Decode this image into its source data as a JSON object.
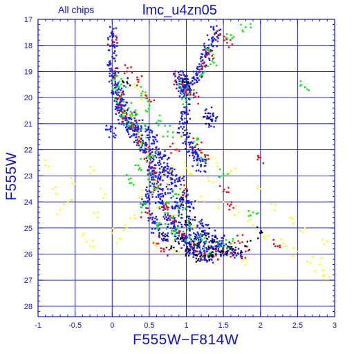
{
  "chart_data": {
    "type": "scatter",
    "title": "lmc_u4zn05",
    "subtitle": "All chips",
    "xlabel": "F555W−F814W",
    "ylabel": "F555W",
    "xlim": [
      -1,
      3
    ],
    "ylim": [
      28.4,
      17
    ],
    "y_inverted": true,
    "grid": true,
    "xticks": [
      "-1",
      "-0.5",
      "0",
      "0.5",
      "1",
      "1.5",
      "2",
      "2.5",
      "3"
    ],
    "xtick_values": [
      -1,
      -0.5,
      0,
      0.5,
      1,
      1.5,
      2,
      2.5,
      3
    ],
    "yticks": [
      "17",
      "18",
      "19",
      "20",
      "21",
      "22",
      "23",
      "24",
      "25",
      "26",
      "27",
      "28"
    ],
    "ytick_values": [
      17,
      18,
      19,
      20,
      21,
      22,
      23,
      24,
      25,
      26,
      27,
      28
    ],
    "colors": {
      "axis": "#1010d0",
      "grid": "#1010d0",
      "series": [
        "#1a1aff",
        "#00ee00",
        "#ff0000",
        "#ffff00",
        "#000000"
      ]
    },
    "series": [
      {
        "color": "#1a1aff",
        "points": [
          [
            0.02,
            19.2
          ],
          [
            0.05,
            19.6
          ],
          [
            0.08,
            19.9
          ],
          [
            0.1,
            20.2
          ],
          [
            0.12,
            20.5
          ],
          [
            0.15,
            20.8
          ],
          [
            0.2,
            21.0
          ],
          [
            0.25,
            21.2
          ],
          [
            0.3,
            21.4
          ],
          [
            0.35,
            21.6
          ],
          [
            0.4,
            21.8
          ],
          [
            0.45,
            22.0
          ],
          [
            0.5,
            22.2
          ],
          [
            0.52,
            22.5
          ],
          [
            0.55,
            22.8
          ],
          [
            0.58,
            23.0
          ],
          [
            0.6,
            23.3
          ],
          [
            0.62,
            23.6
          ],
          [
            0.65,
            23.9
          ],
          [
            0.7,
            24.2
          ],
          [
            0.75,
            24.5
          ],
          [
            0.8,
            24.8
          ],
          [
            0.85,
            25.0
          ],
          [
            0.9,
            25.2
          ],
          [
            0.95,
            25.4
          ],
          [
            1.0,
            25.6
          ],
          [
            1.05,
            25.7
          ],
          [
            1.1,
            25.8
          ],
          [
            1.15,
            25.9
          ],
          [
            1.2,
            26.0
          ],
          [
            1.25,
            26.05
          ],
          [
            1.3,
            26.1
          ],
          [
            0.7,
            22.5
          ],
          [
            0.75,
            23.0
          ],
          [
            0.8,
            23.5
          ],
          [
            0.85,
            24.0
          ],
          [
            0.9,
            24.4
          ],
          [
            1.0,
            24.8
          ],
          [
            1.1,
            25.2
          ],
          [
            1.2,
            25.5
          ],
          [
            1.3,
            25.7
          ],
          [
            1.4,
            25.9
          ],
          [
            0.6,
            22.0
          ],
          [
            0.65,
            22.3
          ],
          [
            0.7,
            22.8
          ],
          [
            0.8,
            22.9
          ],
          [
            0.9,
            23.2
          ],
          [
            1.0,
            23.8
          ],
          [
            1.05,
            24.2
          ],
          [
            1.15,
            24.9
          ],
          [
            0.55,
            21.5
          ],
          [
            0.45,
            21.3
          ],
          [
            0.35,
            21.1
          ],
          [
            0.25,
            20.8
          ],
          [
            0.15,
            20.3
          ],
          [
            0.1,
            19.8
          ],
          [
            0.9,
            19.2
          ],
          [
            0.95,
            19.4
          ],
          [
            1.0,
            19.6
          ],
          [
            1.05,
            19.8
          ],
          [
            0.92,
            19.6
          ],
          [
            1.02,
            19.3
          ],
          [
            1.08,
            19.5
          ],
          [
            0.98,
            19.9
          ],
          [
            1.0,
            21.6
          ],
          [
            1.05,
            21.9
          ],
          [
            1.1,
            22.1
          ],
          [
            1.15,
            22.4
          ],
          [
            1.2,
            22.6
          ],
          [
            0.95,
            21.2
          ],
          [
            0.98,
            20.8
          ],
          [
            1.0,
            20.4
          ],
          [
            1.2,
            18.8
          ],
          [
            1.25,
            18.4
          ],
          [
            1.3,
            18.1
          ],
          [
            1.35,
            17.8
          ],
          [
            1.4,
            17.5
          ],
          [
            1.15,
            19.1
          ],
          [
            1.3,
            20.6
          ],
          [
            1.35,
            20.9
          ],
          [
            0.0,
            17.5
          ],
          [
            0.01,
            18.0
          ],
          [
            0.02,
            18.5
          ],
          [
            0.0,
            19.0
          ],
          [
            -0.02,
            21.3
          ],
          [
            0.55,
            24.6
          ],
          [
            0.6,
            25.0
          ],
          [
            0.7,
            25.3
          ],
          [
            1.5,
            25.8
          ],
          [
            1.6,
            25.95
          ],
          [
            1.7,
            26.0
          ],
          [
            0.5,
            23.6
          ],
          [
            0.45,
            24.0
          ],
          [
            1.45,
            25.5
          ],
          [
            1.35,
            25.3
          ],
          [
            1.25,
            25.1
          ]
        ]
      },
      {
        "color": "#00ee00",
        "points": [
          [
            0.03,
            19.3
          ],
          [
            0.06,
            19.7
          ],
          [
            0.1,
            20.0
          ],
          [
            0.14,
            20.6
          ],
          [
            0.2,
            20.9
          ],
          [
            0.28,
            21.1
          ],
          [
            0.4,
            21.7
          ],
          [
            0.5,
            22.3
          ],
          [
            0.55,
            23.1
          ],
          [
            0.6,
            23.5
          ],
          [
            0.7,
            24.0
          ],
          [
            0.78,
            24.6
          ],
          [
            0.9,
            25.1
          ],
          [
            1.0,
            25.5
          ],
          [
            1.15,
            25.7
          ],
          [
            1.3,
            26.0
          ],
          [
            0.95,
            19.5
          ],
          [
            1.05,
            19.9
          ],
          [
            1.0,
            20.1
          ],
          [
            1.1,
            21.7
          ],
          [
            1.2,
            22.3
          ],
          [
            1.3,
            18.2
          ],
          [
            1.35,
            18.6
          ],
          [
            1.25,
            19.0
          ],
          [
            0.3,
            20.7
          ],
          [
            0.22,
            20.4
          ],
          [
            0.12,
            19.5
          ],
          [
            0.4,
            21.2
          ],
          [
            0.6,
            24.8
          ],
          [
            0.8,
            25.2
          ],
          [
            1.2,
            25.4
          ],
          [
            1.45,
            25.7
          ],
          [
            1.6,
            25.6
          ],
          [
            0.85,
            23.7
          ],
          [
            0.95,
            24.3
          ],
          [
            1.05,
            24.9
          ],
          [
            0.45,
            19.8
          ],
          [
            0.5,
            20.3
          ],
          [
            1.6,
            17.6
          ],
          [
            1.8,
            17.3
          ],
          [
            2.6,
            19.6
          ],
          [
            1.9,
            24.4
          ],
          [
            0.35,
            22.6
          ],
          [
            0.25,
            23.1
          ],
          [
            0.4,
            24.2
          ],
          [
            1.5,
            23.0
          ],
          [
            0.75,
            21.3
          ],
          [
            0.65,
            20.9
          ]
        ]
      },
      {
        "color": "#ff0000",
        "points": [
          [
            0.04,
            19.1
          ],
          [
            0.08,
            19.8
          ],
          [
            0.12,
            20.3
          ],
          [
            0.18,
            20.7
          ],
          [
            0.26,
            21.0
          ],
          [
            0.36,
            21.5
          ],
          [
            0.48,
            22.1
          ],
          [
            0.56,
            22.7
          ],
          [
            0.62,
            23.4
          ],
          [
            0.72,
            24.1
          ],
          [
            0.82,
            24.7
          ],
          [
            0.95,
            25.3
          ],
          [
            1.1,
            25.8
          ],
          [
            1.25,
            25.95
          ],
          [
            1.4,
            26.05
          ],
          [
            1.55,
            25.9
          ],
          [
            0.9,
            19.3
          ],
          [
            1.0,
            19.7
          ],
          [
            1.1,
            20.0
          ],
          [
            1.2,
            18.9
          ],
          [
            1.3,
            18.3
          ],
          [
            1.15,
            21.8
          ],
          [
            1.25,
            22.2
          ],
          [
            0.5,
            20.1
          ],
          [
            0.2,
            19.0
          ],
          [
            0.35,
            19.4
          ],
          [
            1.7,
            25.5
          ],
          [
            1.8,
            25.9
          ],
          [
            2.2,
            25.7
          ],
          [
            0.6,
            25.6
          ],
          [
            0.7,
            25.9
          ],
          [
            1.0,
            23.5
          ],
          [
            1.5,
            23.6
          ],
          [
            1.6,
            24.1
          ],
          [
            0.45,
            24.4
          ],
          [
            2.0,
            22.3
          ],
          [
            0.0,
            17.8
          ],
          [
            1.55,
            17.9
          ],
          [
            1.45,
            17.6
          ],
          [
            0.85,
            22.0
          ]
        ]
      },
      {
        "color": "#ffff00",
        "points": [
          [
            0.5,
            22.4
          ],
          [
            0.6,
            22.1
          ],
          [
            0.7,
            22.9
          ],
          [
            0.75,
            23.3
          ],
          [
            0.8,
            22.6
          ],
          [
            0.9,
            23.0
          ],
          [
            1.0,
            22.7
          ],
          [
            0.55,
            23.5
          ],
          [
            0.65,
            24.2
          ],
          [
            0.85,
            24.5
          ],
          [
            1.1,
            24.9
          ],
          [
            0.4,
            23.8
          ],
          [
            0.3,
            24.5
          ],
          [
            0.2,
            25.0
          ],
          [
            0.1,
            25.4
          ],
          [
            0.0,
            25.2
          ],
          [
            -0.2,
            24.6
          ],
          [
            -0.4,
            25.3
          ],
          [
            -0.6,
            24.0
          ],
          [
            -0.8,
            23.5
          ],
          [
            -0.9,
            22.6
          ],
          [
            -0.5,
            23.3
          ],
          [
            -0.3,
            22.9
          ],
          [
            -0.1,
            23.7
          ],
          [
            1.5,
            24.0
          ],
          [
            1.7,
            24.4
          ],
          [
            1.9,
            24.9
          ],
          [
            2.1,
            25.3
          ],
          [
            2.3,
            25.6
          ],
          [
            2.5,
            25.9
          ],
          [
            2.7,
            26.1
          ],
          [
            2.8,
            26.4
          ],
          [
            2.0,
            23.5
          ],
          [
            2.2,
            24.1
          ],
          [
            2.4,
            24.6
          ],
          [
            2.6,
            25.0
          ],
          [
            2.9,
            25.5
          ],
          [
            2.85,
            26.8
          ],
          [
            2.95,
            27.0
          ],
          [
            1.8,
            26.2
          ],
          [
            1.6,
            22.8
          ],
          [
            1.4,
            22.5
          ],
          [
            1.3,
            23.2
          ],
          [
            1.2,
            23.8
          ],
          [
            0.45,
            21.9
          ],
          [
            0.35,
            21.4
          ],
          [
            0.95,
            21.4
          ],
          [
            1.05,
            22.9
          ],
          [
            0.3,
            19.5
          ],
          [
            0.4,
            20.1
          ],
          [
            0.25,
            20.6
          ],
          [
            0.6,
            25.7
          ],
          [
            0.9,
            25.9
          ],
          [
            1.2,
            26.1
          ],
          [
            -0.7,
            24.3
          ],
          [
            -0.3,
            25.7
          ]
        ]
      },
      {
        "color": "#000000",
        "points": [
          [
            0.9,
            25.6
          ],
          [
            1.0,
            25.85
          ],
          [
            1.1,
            25.95
          ],
          [
            1.2,
            26.05
          ],
          [
            1.3,
            26.1
          ],
          [
            1.4,
            26.0
          ],
          [
            1.5,
            25.9
          ],
          [
            0.8,
            25.7
          ],
          [
            1.05,
            24.8
          ],
          [
            1.25,
            25.2
          ],
          [
            1.35,
            25.5
          ],
          [
            0.7,
            25.4
          ],
          [
            1.15,
            25.6
          ],
          [
            2.0,
            25.2
          ],
          [
            1.6,
            25.8
          ],
          [
            0.2,
            19.4
          ],
          [
            0.95,
            23.9
          ],
          [
            1.8,
            25.7
          ],
          [
            1.0,
            19.4
          ],
          [
            1.3,
            20.8
          ]
        ]
      }
    ]
  }
}
